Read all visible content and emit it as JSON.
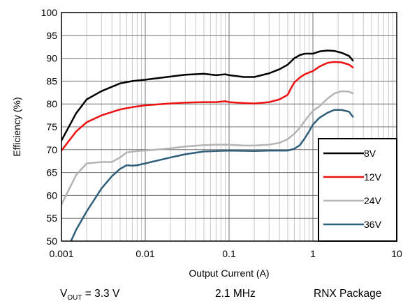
{
  "chart_data": {
    "type": "line",
    "title": "",
    "xlabel": "Output Current (A)",
    "ylabel": "Efficiency (%)",
    "x_scale": "log",
    "xlim": [
      0.001,
      10
    ],
    "ylim": [
      50,
      100
    ],
    "x_ticks": [
      0.001,
      0.01,
      0.1,
      1,
      10
    ],
    "x_tick_labels": [
      "0.001",
      "0.01",
      "0.1",
      "1",
      "10"
    ],
    "y_ticks": [
      50,
      55,
      60,
      65,
      70,
      75,
      80,
      85,
      90,
      95,
      100
    ],
    "y_tick_labels": [
      "50",
      "55",
      "60",
      "65",
      "70",
      "75",
      "80",
      "85",
      "90",
      "95",
      "100"
    ],
    "grid": true,
    "legend_position": "bottom-right",
    "series": [
      {
        "name": "8V",
        "color": "#000000",
        "points": [
          [
            0.001,
            72
          ],
          [
            0.0015,
            78
          ],
          [
            0.002,
            81
          ],
          [
            0.003,
            82.8
          ],
          [
            0.005,
            84.5
          ],
          [
            0.007,
            85
          ],
          [
            0.01,
            85.3
          ],
          [
            0.02,
            86
          ],
          [
            0.03,
            86.4
          ],
          [
            0.05,
            86.6
          ],
          [
            0.07,
            86.3
          ],
          [
            0.09,
            86.5
          ],
          [
            0.1,
            86.3
          ],
          [
            0.15,
            85.9
          ],
          [
            0.2,
            85.9
          ],
          [
            0.3,
            86.7
          ],
          [
            0.4,
            87.6
          ],
          [
            0.5,
            88.6
          ],
          [
            0.6,
            90
          ],
          [
            0.7,
            90.7
          ],
          [
            0.8,
            91
          ],
          [
            0.9,
            91
          ],
          [
            1,
            91
          ],
          [
            1.2,
            91.5
          ],
          [
            1.5,
            91.7
          ],
          [
            1.8,
            91.6
          ],
          [
            2.2,
            91.2
          ],
          [
            2.7,
            90.5
          ],
          [
            3,
            89.5
          ]
        ]
      },
      {
        "name": "12V",
        "color": "#ee1111",
        "points": [
          [
            0.001,
            69.8
          ],
          [
            0.0015,
            74
          ],
          [
            0.002,
            76
          ],
          [
            0.003,
            77.5
          ],
          [
            0.005,
            78.8
          ],
          [
            0.007,
            79.3
          ],
          [
            0.01,
            79.7
          ],
          [
            0.02,
            80.1
          ],
          [
            0.03,
            80.3
          ],
          [
            0.05,
            80.4
          ],
          [
            0.07,
            80.4
          ],
          [
            0.09,
            80.6
          ],
          [
            0.1,
            80.4
          ],
          [
            0.15,
            80.2
          ],
          [
            0.2,
            80.1
          ],
          [
            0.3,
            80.4
          ],
          [
            0.4,
            81
          ],
          [
            0.5,
            82
          ],
          [
            0.55,
            83.5
          ],
          [
            0.6,
            84.7
          ],
          [
            0.7,
            85.8
          ],
          [
            0.8,
            86.5
          ],
          [
            1,
            87.2
          ],
          [
            1.2,
            88.2
          ],
          [
            1.5,
            89
          ],
          [
            1.8,
            89.2
          ],
          [
            2.2,
            89.1
          ],
          [
            2.7,
            88.6
          ],
          [
            3,
            88
          ]
        ]
      },
      {
        "name": "24V",
        "color": "#b4b4b4",
        "points": [
          [
            0.001,
            58
          ],
          [
            0.0015,
            64.5
          ],
          [
            0.002,
            67
          ],
          [
            0.003,
            67.3
          ],
          [
            0.004,
            67.3
          ],
          [
            0.005,
            68.3
          ],
          [
            0.006,
            69.4
          ],
          [
            0.008,
            69.7
          ],
          [
            0.01,
            69.8
          ],
          [
            0.02,
            70.3
          ],
          [
            0.03,
            70.7
          ],
          [
            0.05,
            71
          ],
          [
            0.07,
            71.1
          ],
          [
            0.1,
            71.1
          ],
          [
            0.15,
            70.9
          ],
          [
            0.2,
            70.9
          ],
          [
            0.3,
            71.1
          ],
          [
            0.4,
            71.5
          ],
          [
            0.5,
            72.3
          ],
          [
            0.6,
            73.5
          ],
          [
            0.7,
            74.8
          ],
          [
            0.8,
            76.3
          ],
          [
            0.9,
            77.5
          ],
          [
            1,
            78.5
          ],
          [
            1.2,
            79.5
          ],
          [
            1.5,
            81.2
          ],
          [
            1.8,
            82.3
          ],
          [
            2.2,
            82.8
          ],
          [
            2.7,
            82.7
          ],
          [
            3,
            82.3
          ]
        ]
      },
      {
        "name": "36V",
        "color": "#2f5f7a",
        "points": [
          [
            0.0013,
            50
          ],
          [
            0.0015,
            52.5
          ],
          [
            0.002,
            56.5
          ],
          [
            0.003,
            61.5
          ],
          [
            0.004,
            64.2
          ],
          [
            0.005,
            65.8
          ],
          [
            0.006,
            66.6
          ],
          [
            0.007,
            66.5
          ],
          [
            0.008,
            66.6
          ],
          [
            0.01,
            67
          ],
          [
            0.02,
            68.3
          ],
          [
            0.03,
            69
          ],
          [
            0.05,
            69.6
          ],
          [
            0.07,
            69.7
          ],
          [
            0.1,
            69.8
          ],
          [
            0.2,
            69.7
          ],
          [
            0.3,
            69.8
          ],
          [
            0.5,
            69.8
          ],
          [
            0.6,
            70.2
          ],
          [
            0.7,
            71
          ],
          [
            0.8,
            72.5
          ],
          [
            0.9,
            74
          ],
          [
            1,
            75.5
          ],
          [
            1.2,
            77
          ],
          [
            1.5,
            78.1
          ],
          [
            1.8,
            78.7
          ],
          [
            2.2,
            78.7
          ],
          [
            2.7,
            78.3
          ],
          [
            3,
            77.2
          ]
        ]
      }
    ]
  },
  "caption": {
    "vout_symbol": "V",
    "vout_subscript": "OUT",
    "vout_value": " = 3.3 V",
    "frequency": "2.1 MHz",
    "package": "RNX Package"
  }
}
